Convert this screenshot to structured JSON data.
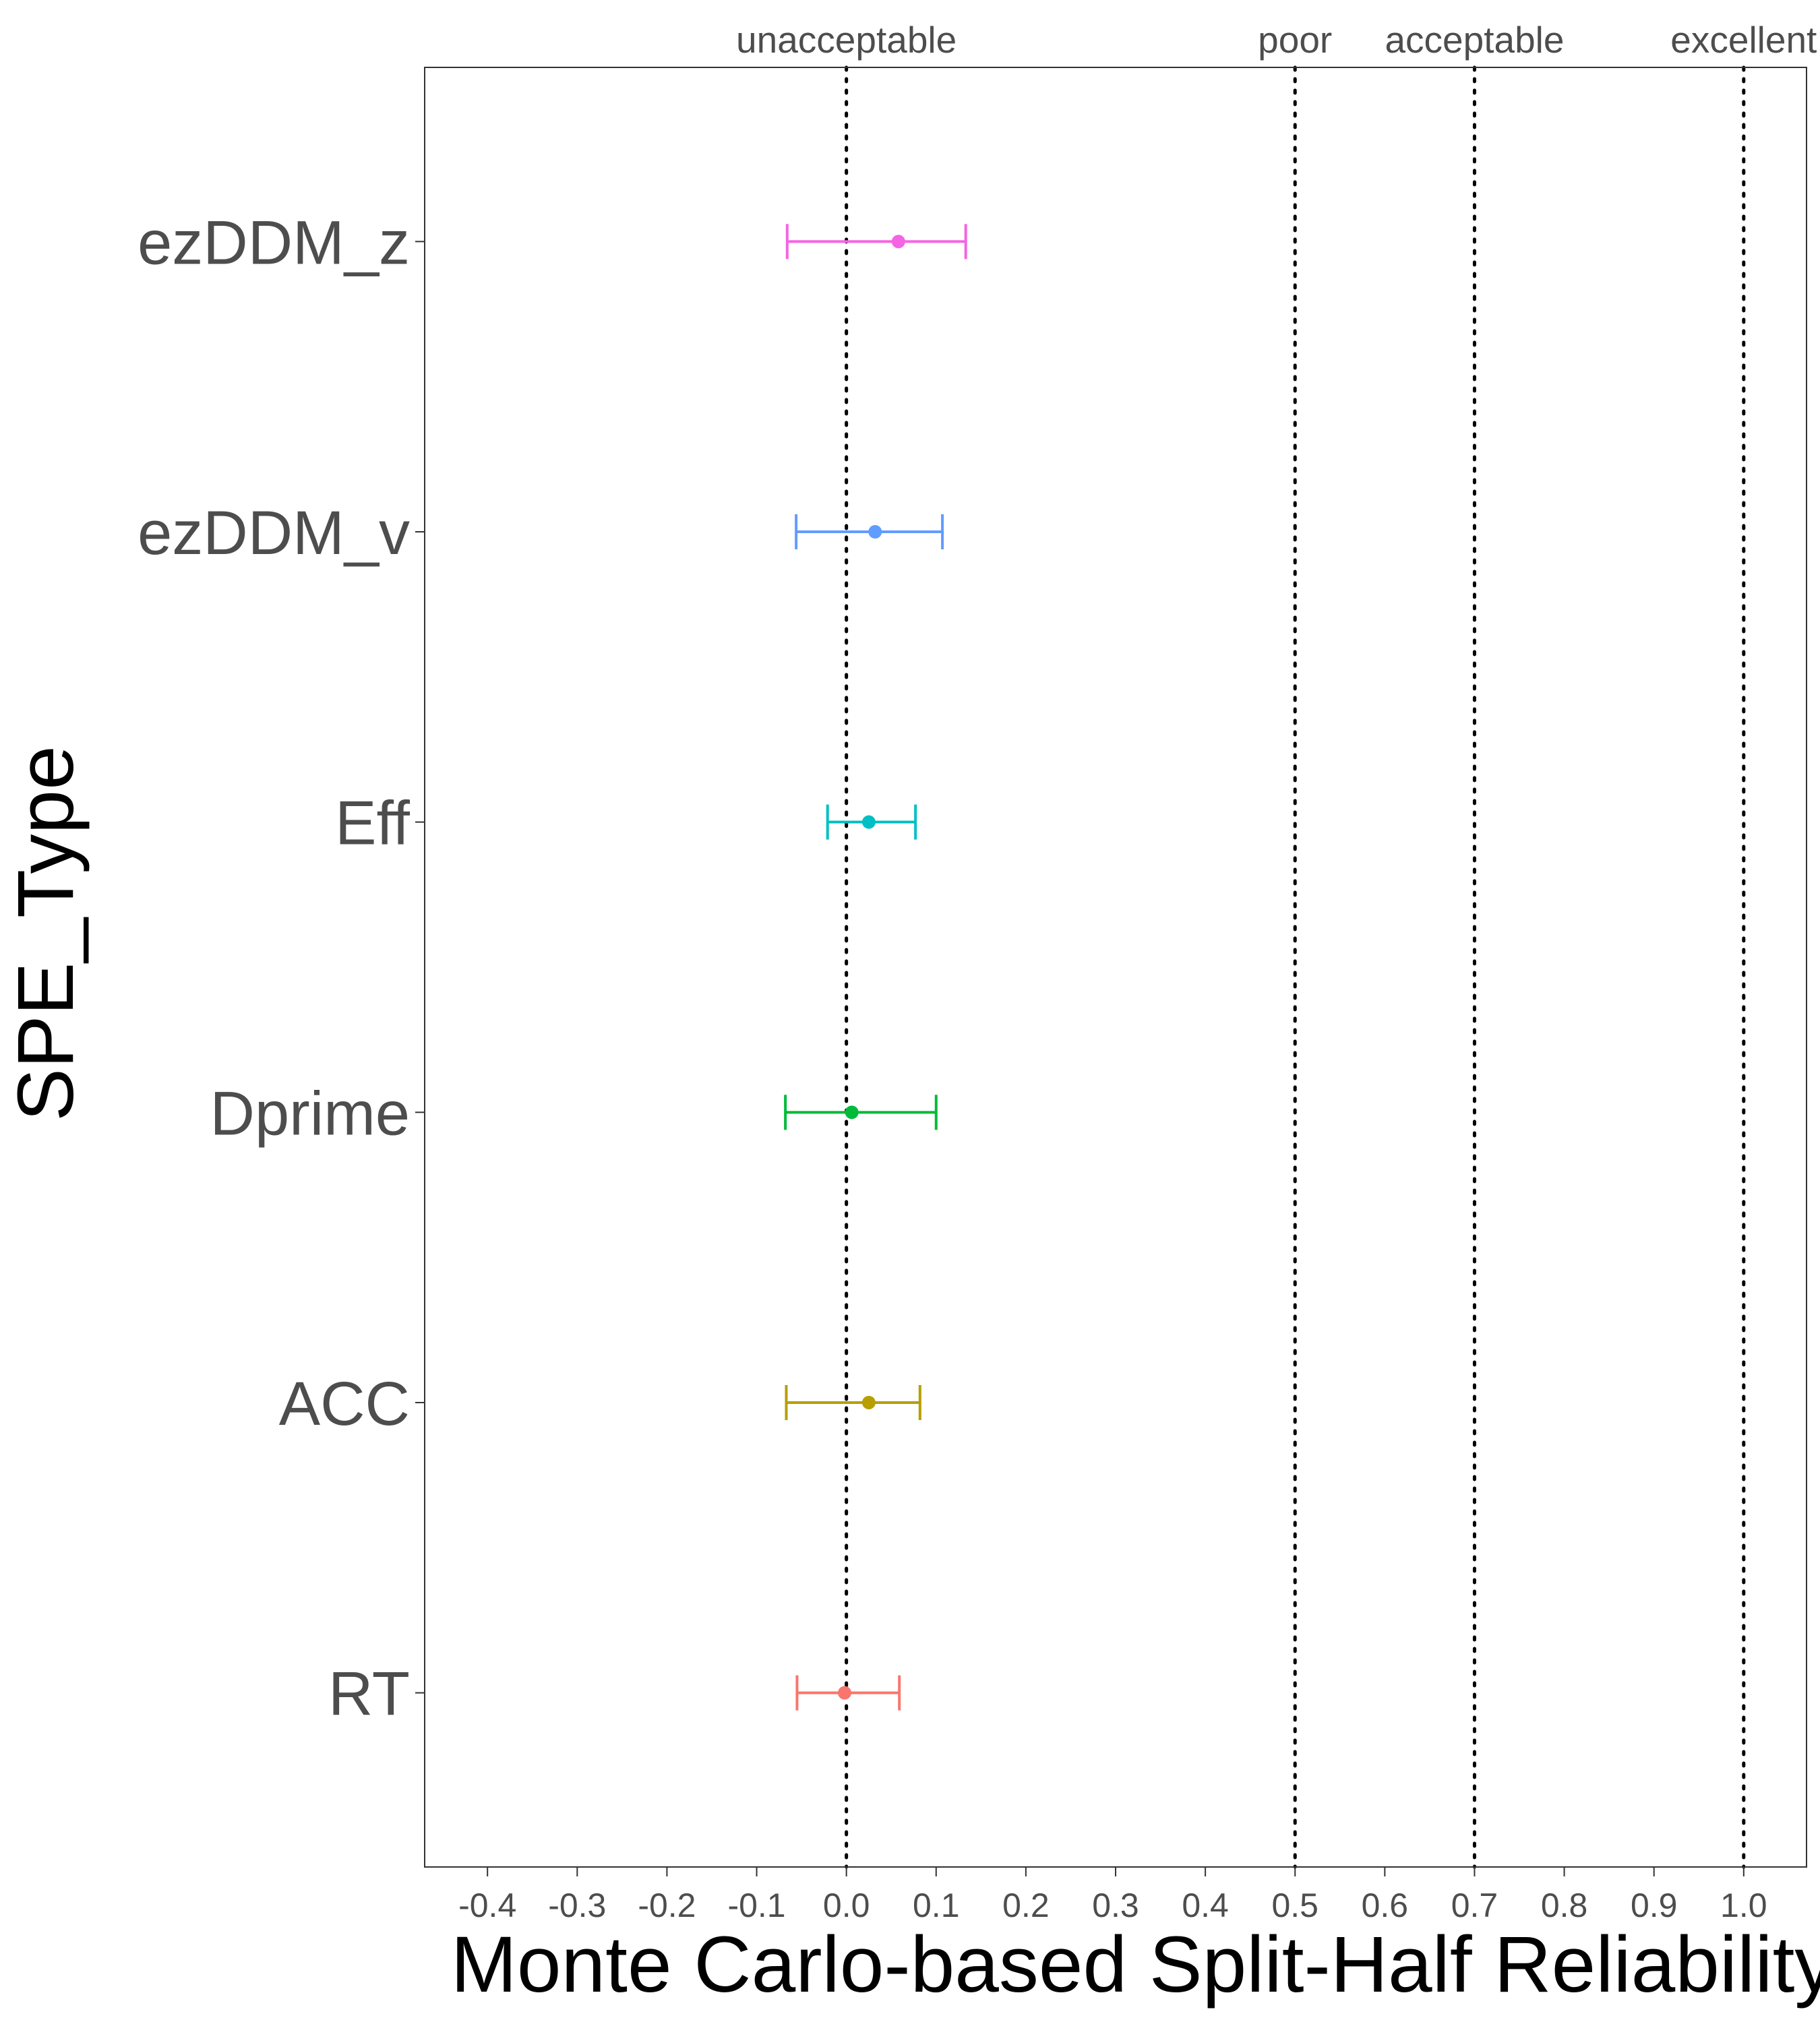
{
  "chart_data": {
    "type": "errorbar",
    "orientation": "horizontal",
    "xlabel": "Monte Carlo-based Split-Half Reliability",
    "ylabel": "SPE_Type",
    "xlim": [
      -0.47,
      1.07
    ],
    "x_ticks": [
      -0.4,
      -0.3,
      -0.2,
      -0.1,
      0.0,
      0.1,
      0.2,
      0.3,
      0.4,
      0.5,
      0.6,
      0.7,
      0.8,
      0.9,
      1.0
    ],
    "x_tick_labels": [
      "-0.4",
      "-0.3",
      "-0.2",
      "-0.1",
      "0.0",
      "0.1",
      "0.2",
      "0.3",
      "0.4",
      "0.5",
      "0.6",
      "0.7",
      "0.8",
      "0.9",
      "1.0"
    ],
    "grid": false,
    "reference_lines": [
      {
        "x": 0.0,
        "label": "unacceptable"
      },
      {
        "x": 0.5,
        "label": "poor"
      },
      {
        "x": 0.7,
        "label": "acceptable"
      },
      {
        "x": 1.0,
        "label": "excellent"
      }
    ],
    "categories": [
      "ezDDM_z",
      "ezDDM_v",
      "Eff",
      "Dprime",
      "ACC",
      "RT"
    ],
    "series": [
      {
        "category": "ezDDM_z",
        "value": 0.058,
        "lower": -0.066,
        "upper": 0.133,
        "color": "#F564E3"
      },
      {
        "category": "ezDDM_v",
        "value": 0.032,
        "lower": -0.056,
        "upper": 0.107,
        "color": "#619CFF"
      },
      {
        "category": "Eff",
        "value": 0.025,
        "lower": -0.021,
        "upper": 0.077,
        "color": "#00BFC4"
      },
      {
        "category": "Dprime",
        "value": 0.006,
        "lower": -0.068,
        "upper": 0.1,
        "color": "#00BA38"
      },
      {
        "category": "ACC",
        "value": 0.025,
        "lower": -0.067,
        "upper": 0.082,
        "color": "#B79F00"
      },
      {
        "category": "RT",
        "value": -0.002,
        "lower": -0.055,
        "upper": 0.059,
        "color": "#F8766D"
      }
    ]
  }
}
